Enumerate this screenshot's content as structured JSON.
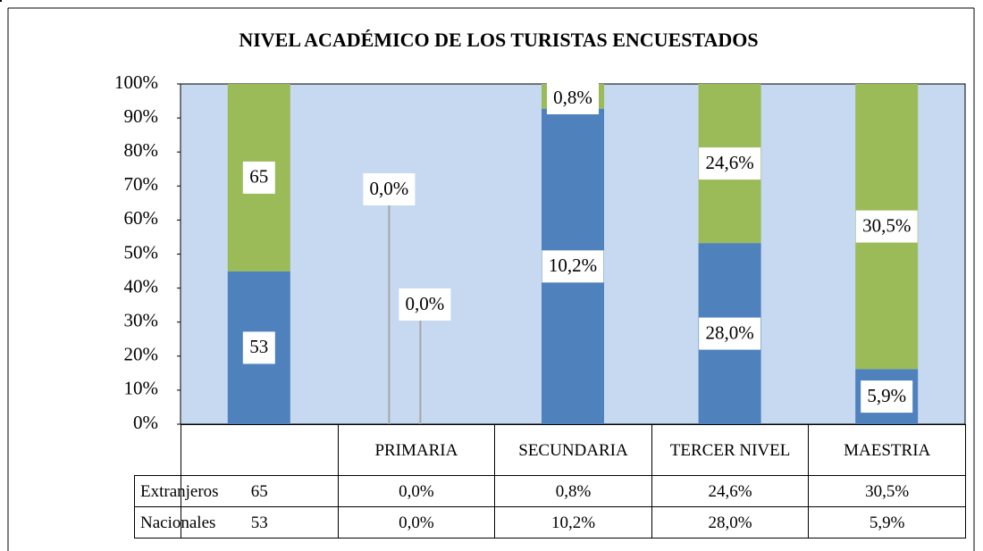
{
  "chart_data": {
    "type": "bar",
    "stacked": "percent",
    "title": "NIVEL ACADÉMICO DE LOS TURISTAS ENCUESTADOS",
    "categories": [
      null,
      "PRIMARIA",
      "SECUNDARIA",
      "TERCER NIVEL",
      "MAESTRIA"
    ],
    "series": [
      {
        "name": "Extranjeros",
        "color": "#9bbb59",
        "values": [
          65,
          0.0,
          0.8,
          24.6,
          30.5
        ],
        "value_labels": [
          "65",
          "0,0%",
          "0,8%",
          "24,6%",
          "30,5%"
        ]
      },
      {
        "name": "Nacionales",
        "color": "#4f81bd",
        "values": [
          53,
          0.0,
          10.2,
          28.0,
          5.9
        ],
        "value_labels": [
          "53",
          "0,0%",
          "10,2%",
          "28,0%",
          "5,9%"
        ]
      }
    ],
    "ylim": [
      0,
      100
    ],
    "yticks": [
      {
        "value": 0,
        "label": "0%"
      },
      {
        "value": 10,
        "label": "10%"
      },
      {
        "value": 20,
        "label": "20%"
      },
      {
        "value": 30,
        "label": "30%"
      },
      {
        "value": 40,
        "label": "40%"
      },
      {
        "value": 50,
        "label": "50%"
      },
      {
        "value": 60,
        "label": "60%"
      },
      {
        "value": 70,
        "label": "70%"
      },
      {
        "value": 80,
        "label": "80%"
      },
      {
        "value": 90,
        "label": "90%"
      },
      {
        "value": 100,
        "label": "100%"
      }
    ],
    "plot_background": "#c6d9f1"
  }
}
